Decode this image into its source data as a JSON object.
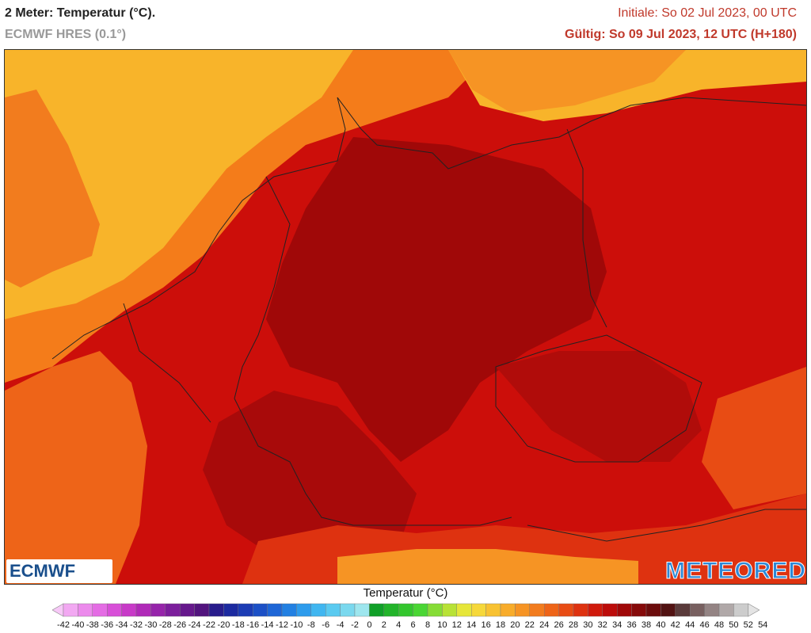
{
  "header": {
    "title": "2 Meter: Temperatur (°C).",
    "model": "ECMWF HRES (0.1°)",
    "init": "Initiale: So 02 Jul 2023, 00 UTC",
    "valid": "Gültig: So 09 Jul 2023, 12 UTC (H+180)"
  },
  "logos": {
    "left": "ECMWF",
    "right": "METEORED"
  },
  "legend": {
    "title": "Temperatur (°C)",
    "ticks": [
      "-42",
      "-40",
      "-38",
      "-36",
      "-34",
      "-32",
      "-30",
      "-28",
      "-26",
      "-24",
      "-22",
      "-20",
      "-18",
      "-16",
      "-14",
      "-12",
      "-10",
      "-8",
      "-6",
      "-4",
      "-2",
      "0",
      "2",
      "4",
      "6",
      "8",
      "10",
      "12",
      "14",
      "16",
      "18",
      "20",
      "22",
      "24",
      "26",
      "28",
      "30",
      "32",
      "34",
      "36",
      "38",
      "40",
      "42",
      "44",
      "46",
      "48",
      "50",
      "52",
      "54"
    ],
    "colors": [
      "#f7c8f7",
      "#f2a8f2",
      "#ec8aec",
      "#e46ce4",
      "#d84fd8",
      "#c83ac8",
      "#b02ab8",
      "#9624aa",
      "#7c1e9c",
      "#66188c",
      "#52147e",
      "#281c8c",
      "#1c2aa0",
      "#1c3cb4",
      "#1c50c6",
      "#1e66d6",
      "#2280e2",
      "#2e9cec",
      "#40b6f0",
      "#5acaf0",
      "#7ad8ee",
      "#9ee6ee",
      "#10a028",
      "#22b42a",
      "#34c62e",
      "#4ad634",
      "#86dc36",
      "#b8e236",
      "#e6e63a",
      "#f6d83a",
      "#f8c232",
      "#f8ac2a",
      "#f69424",
      "#f27c1e",
      "#ee6418",
      "#e84c14",
      "#de3210",
      "#d01a0c",
      "#bc0c0a",
      "#a00808",
      "#860a0a",
      "#6c0c0c",
      "#521212",
      "#5a3a3a",
      "#786060",
      "#948484",
      "#b0a8a8",
      "#cccccc",
      "#e4e4e4"
    ],
    "colors_meaning": "color per scale bin from coldest to hottest"
  }
}
